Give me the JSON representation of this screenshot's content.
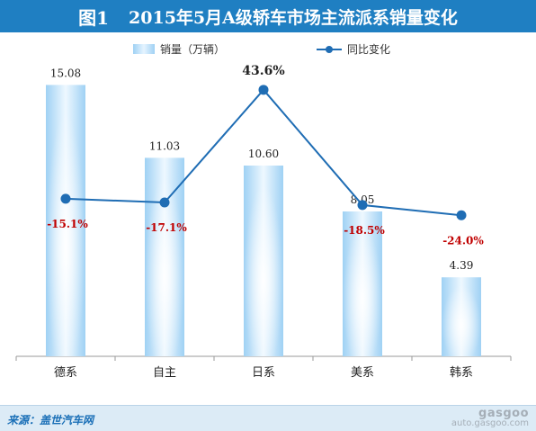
{
  "title": {
    "fig": "图1",
    "text": "2015年5月A级轿车市场主流派系销量变化"
  },
  "legend": {
    "bar_label": "销量（万辆）",
    "line_label": "同比变化"
  },
  "source": "来源：盖世汽车网",
  "watermark": {
    "logo": "gasgoo",
    "url": "auto.gasgoo.com"
  },
  "colors": {
    "title_bg": "#1f7fc2",
    "bar": "#9fd1f4",
    "line": "#1f6db4",
    "negative_label": "#c00000",
    "positive_label": "#222222"
  },
  "chart_data": {
    "type": "bar+line",
    "categories": [
      "德系",
      "自主",
      "日系",
      "美系",
      "韩系"
    ],
    "series": [
      {
        "name": "销量（万辆）",
        "type": "bar",
        "values": [
          15.08,
          11.03,
          10.6,
          8.05,
          4.39
        ],
        "labels": [
          "15.08",
          "11.03",
          "10.60",
          "8.05",
          "4.39"
        ]
      },
      {
        "name": "同比变化",
        "type": "line",
        "values": [
          -15.1,
          -17.1,
          43.6,
          -18.5,
          -24.0
        ],
        "labels": [
          "-15.1%",
          "-17.1%",
          "43.6%",
          "-18.5%",
          "-24.0%"
        ]
      }
    ],
    "bar_ylim": [
      0,
      16.5
    ],
    "line_ylim": [
      -100,
      60
    ],
    "grid": false,
    "legend_position": "top"
  }
}
